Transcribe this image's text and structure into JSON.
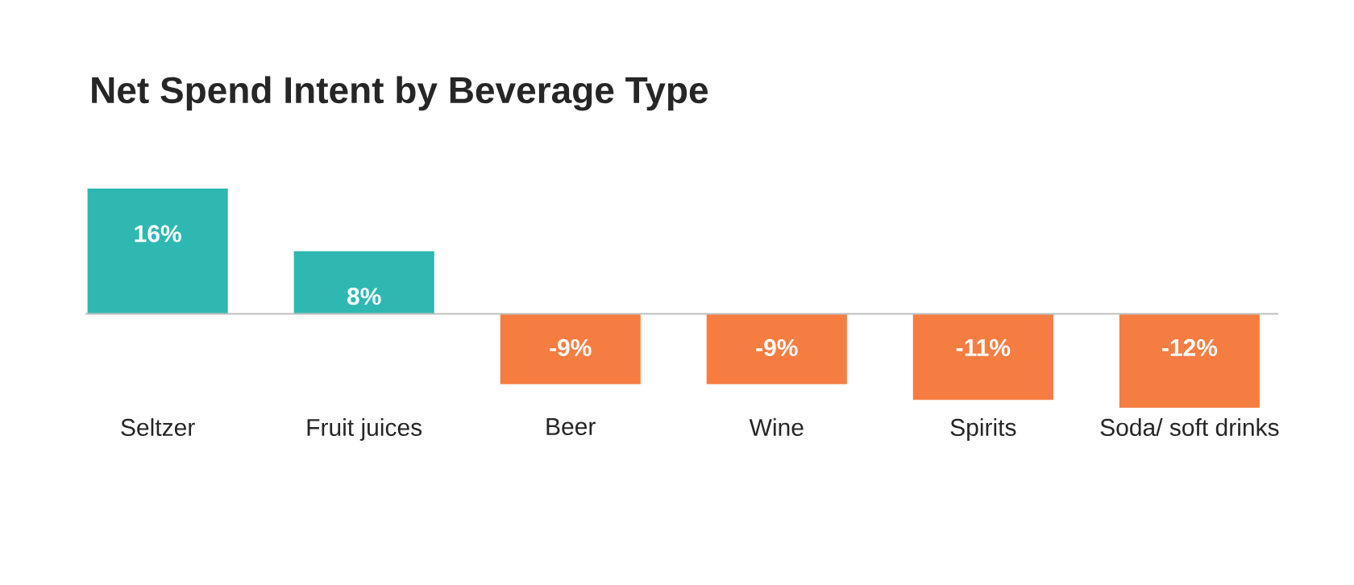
{
  "chart_data": {
    "type": "bar",
    "title": "Net Spend Intent by Beverage Type",
    "categories": [
      "Seltzer",
      "Fruit juices",
      "Beer",
      "Wine",
      "Spirits",
      "Soda/ soft drinks"
    ],
    "values": [
      16,
      8,
      -9,
      -9,
      -11,
      -12
    ],
    "colors": [
      "#2eb8b1",
      "#2eb8b1",
      "#f57d42",
      "#f57d42",
      "#f57d42",
      "#f57d42"
    ],
    "value_labels": [
      "16%",
      "8%",
      "-9%",
      "-9%",
      "-11%",
      "-12%"
    ]
  }
}
